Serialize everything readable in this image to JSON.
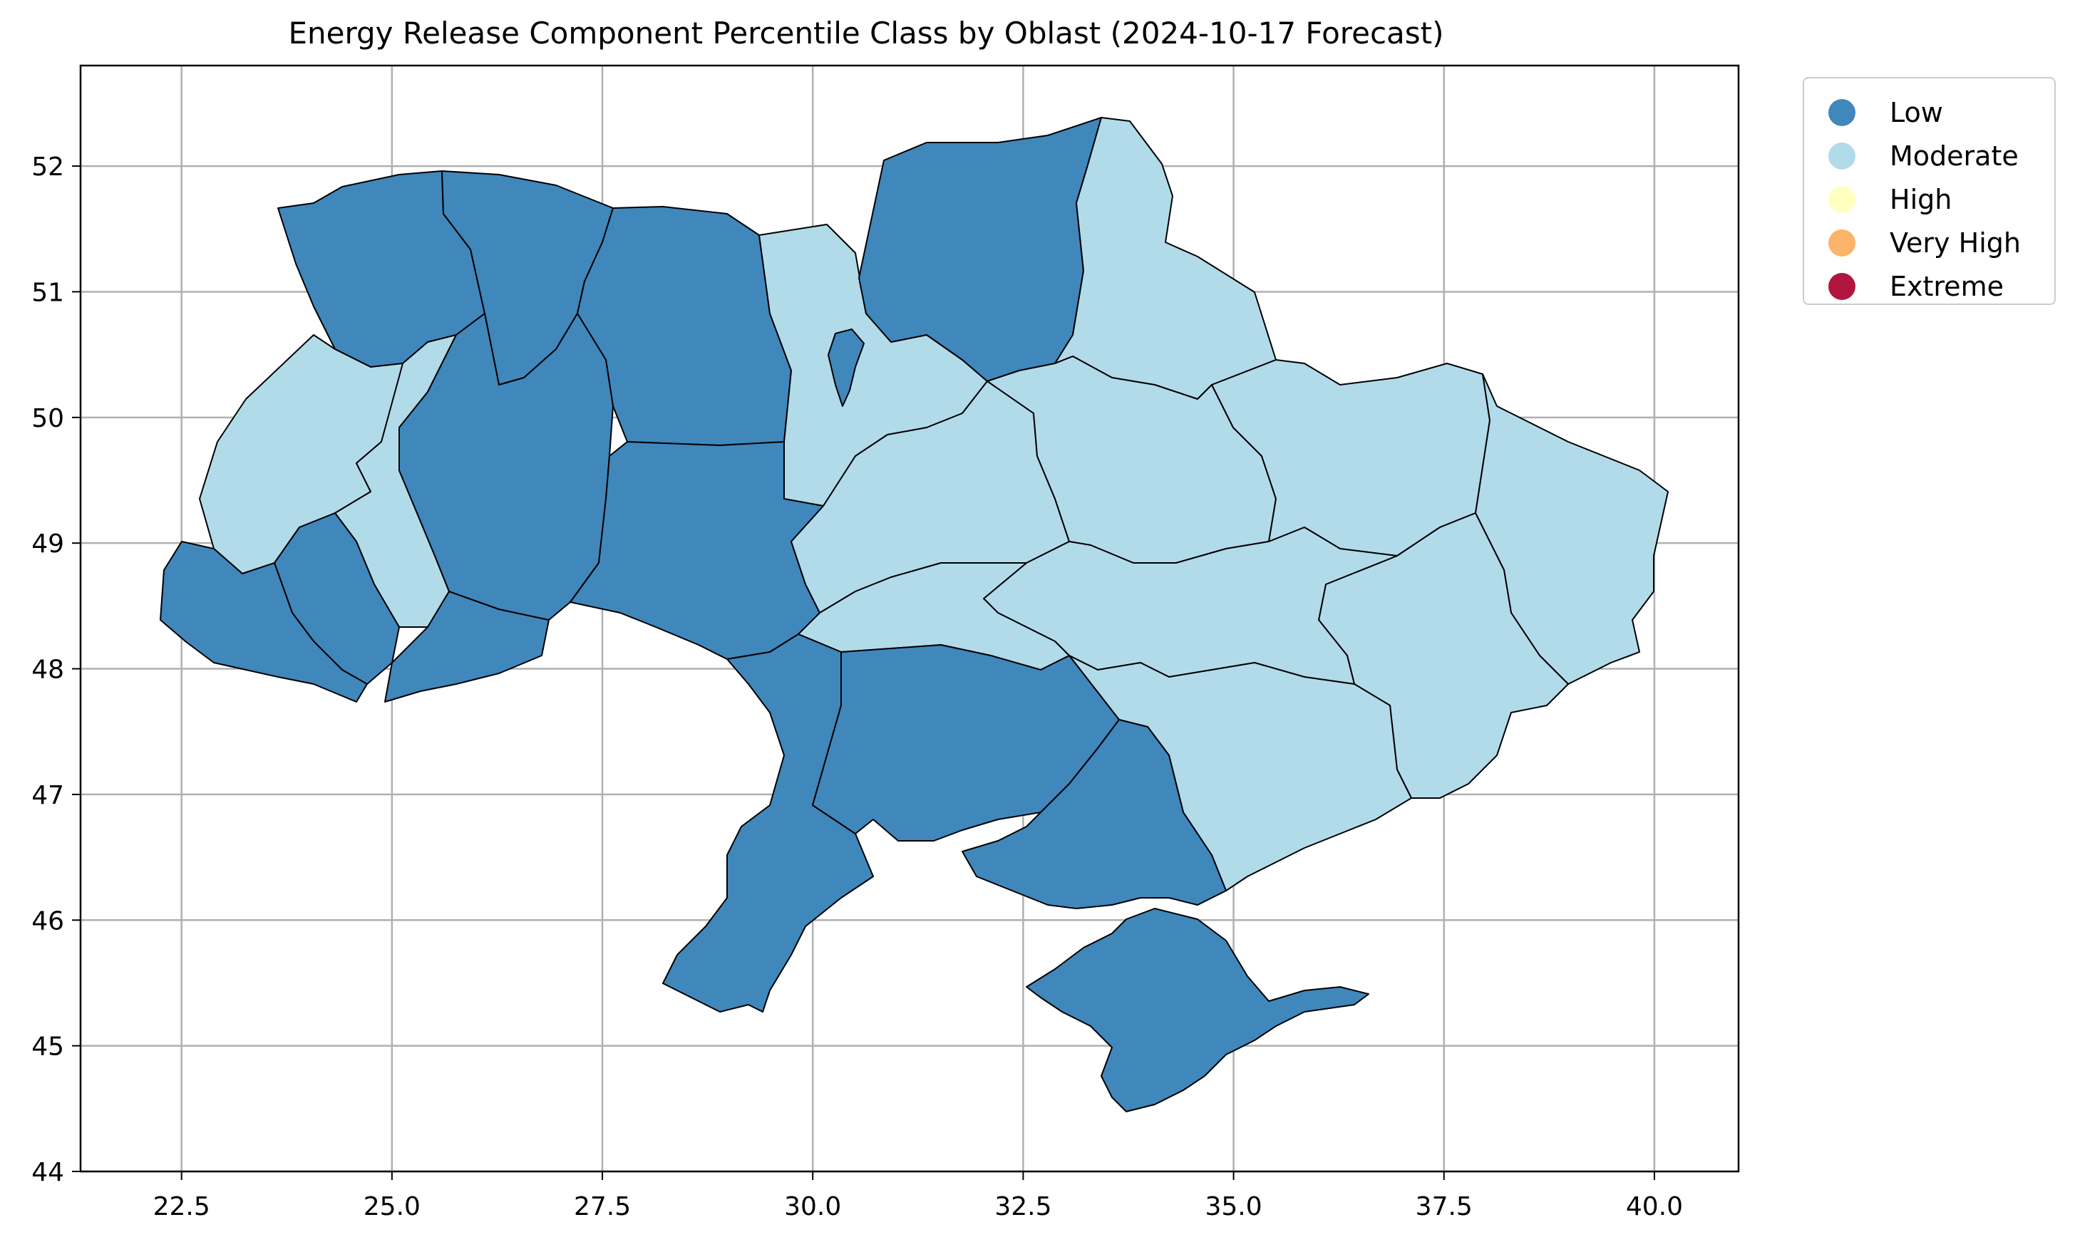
{
  "title": "Energy Release Component Percentile Class by Oblast (2024-10-17 Forecast)",
  "colors": {
    "low": "#4087bc",
    "moderate": "#b2dbea",
    "high": "#ffffbf",
    "very_high": "#fbb469",
    "extreme": "#b0163f",
    "grid": "#b0b0b0"
  },
  "legend": [
    {
      "label": "Low",
      "color": "#4087bc"
    },
    {
      "label": "Moderate",
      "color": "#b2dbea"
    },
    {
      "label": "High",
      "color": "#ffffbf"
    },
    {
      "label": "Very High",
      "color": "#fbb469"
    },
    {
      "label": "Extreme",
      "color": "#b0163f"
    }
  ],
  "axes": {
    "x_ticks": [
      "22.5",
      "25.0",
      "27.5",
      "30.0",
      "32.5",
      "35.0",
      "37.5",
      "40.0"
    ],
    "y_ticks": [
      "44",
      "45",
      "46",
      "47",
      "48",
      "49",
      "50",
      "51",
      "52"
    ],
    "x_range": [
      21.3,
      41.0
    ],
    "y_range": [
      44.0,
      52.8
    ],
    "grid": true
  },
  "regions": [
    {
      "name": "Volyn",
      "class": "Low"
    },
    {
      "name": "Rivne",
      "class": "Low"
    },
    {
      "name": "Zhytomyr",
      "class": "Low"
    },
    {
      "name": "Kyiv",
      "class": "Moderate"
    },
    {
      "name": "Kyiv City",
      "class": "Low"
    },
    {
      "name": "Chernihiv",
      "class": "Low"
    },
    {
      "name": "Sumy",
      "class": "Moderate"
    },
    {
      "name": "Lviv",
      "class": "Moderate"
    },
    {
      "name": "Ternopil",
      "class": "Moderate"
    },
    {
      "name": "Ivano-Frankivsk",
      "class": "Low"
    },
    {
      "name": "Zakarpattia",
      "class": "Low"
    },
    {
      "name": "Chernivtsi",
      "class": "Low"
    },
    {
      "name": "Khmelnytskyi",
      "class": "Low"
    },
    {
      "name": "Vinnytsia",
      "class": "Low"
    },
    {
      "name": "Cherkasy",
      "class": "Moderate"
    },
    {
      "name": "Poltava",
      "class": "Moderate"
    },
    {
      "name": "Kharkiv",
      "class": "Moderate"
    },
    {
      "name": "Luhansk",
      "class": "Moderate"
    },
    {
      "name": "Donetsk",
      "class": "Moderate"
    },
    {
      "name": "Dnipropetrovsk",
      "class": "Moderate"
    },
    {
      "name": "Kirovohrad",
      "class": "Moderate"
    },
    {
      "name": "Zaporizhzhia",
      "class": "Moderate"
    },
    {
      "name": "Odesa",
      "class": "Low"
    },
    {
      "name": "Mykolaiv",
      "class": "Low"
    },
    {
      "name": "Kherson",
      "class": "Low"
    },
    {
      "name": "Crimea",
      "class": "Low"
    }
  ]
}
